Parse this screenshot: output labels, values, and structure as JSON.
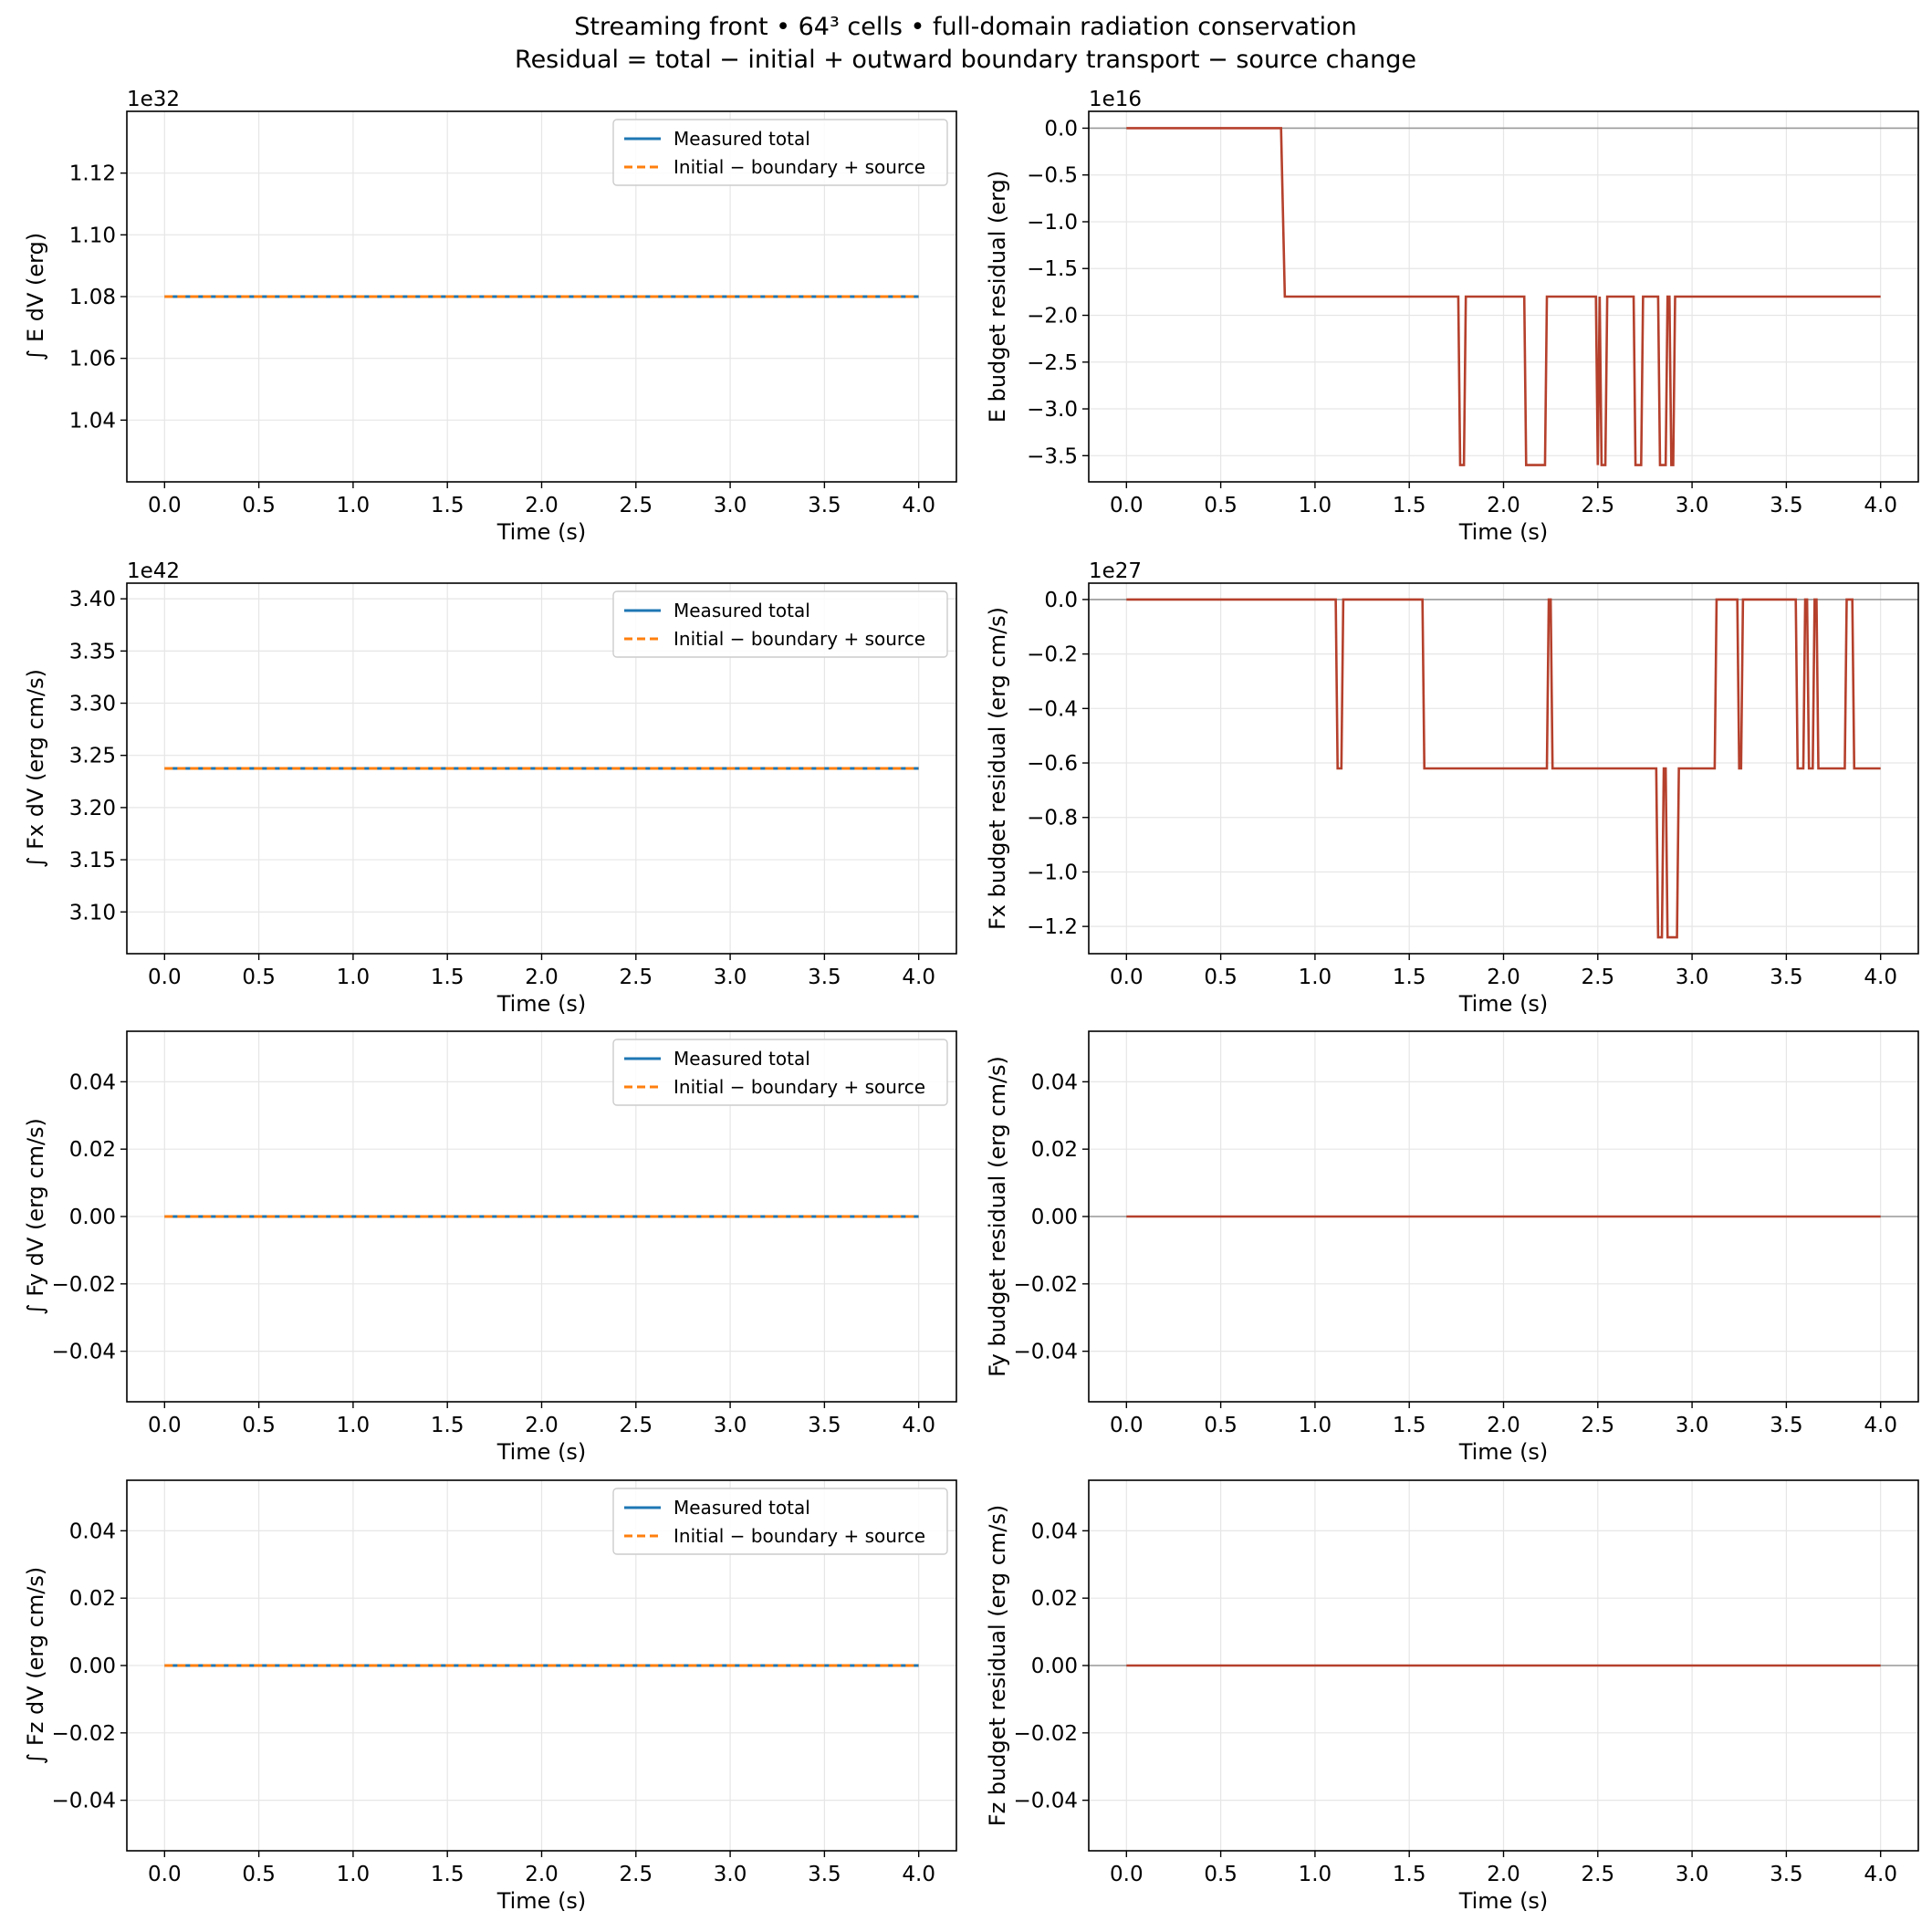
{
  "figure": {
    "title_line1": "Streaming front • 64³ cells • full-domain radiation conservation",
    "title_line2": "Residual = total − initial + outward boundary transport − source change"
  },
  "colors": {
    "measured": "#1f77b4",
    "predicted": "#ff7f0e",
    "residual": "#b5402c",
    "zero_line": "#999999",
    "grid": "#e6e6e6"
  },
  "legend": {
    "measured": "Measured total",
    "predicted": "Initial − boundary + source"
  },
  "chart_data": [
    {
      "type": "line",
      "xlabel": "Time (s)",
      "ylabel": "∫ E dV (erg)",
      "offset_text": "1e32",
      "xlim": [
        -0.2,
        4.2
      ],
      "ylim": [
        1.02,
        1.14
      ],
      "xticks": [
        "0.0",
        "0.5",
        "1.0",
        "1.5",
        "2.0",
        "2.5",
        "3.0",
        "3.5",
        "4.0"
      ],
      "yticks": [
        "1.04",
        "1.06",
        "1.08",
        "1.10",
        "1.12"
      ],
      "legend": "upper right",
      "grid": true,
      "series": [
        {
          "name": "Measured total",
          "style": "solid",
          "x": [
            0,
            4
          ],
          "y": [
            1.08,
            1.08
          ]
        },
        {
          "name": "Initial − boundary + source",
          "style": "dashed",
          "x": [
            0,
            4
          ],
          "y": [
            1.08,
            1.08
          ]
        }
      ]
    },
    {
      "type": "line",
      "xlabel": "Time (s)",
      "ylabel": "E budget residual (erg)",
      "offset_text": "1e16",
      "xlim": [
        -0.2,
        4.2
      ],
      "ylim": [
        -3.78,
        0.18
      ],
      "xticks": [
        "0.0",
        "0.5",
        "1.0",
        "1.5",
        "2.0",
        "2.5",
        "3.0",
        "3.5",
        "4.0"
      ],
      "yticks": [
        "0.0",
        "−0.5",
        "−1.0",
        "−1.5",
        "−2.0",
        "−2.5",
        "−3.0",
        "−3.5"
      ],
      "zero_line": true,
      "grid": true,
      "series": [
        {
          "style": "solid",
          "x": [
            0,
            0.82,
            0.84,
            1.76,
            1.77,
            1.79,
            1.8,
            2.11,
            2.12,
            2.22,
            2.23,
            2.49,
            2.5,
            2.51,
            2.52,
            2.54,
            2.55,
            2.69,
            2.7,
            2.73,
            2.74,
            2.82,
            2.83,
            2.86,
            2.87,
            2.88,
            2.89,
            2.9,
            2.91,
            4.0
          ],
          "y": [
            0,
            0,
            -1.8,
            -1.8,
            -3.6,
            -3.6,
            -1.8,
            -1.8,
            -3.6,
            -3.6,
            -1.8,
            -1.8,
            -3.6,
            -1.8,
            -3.6,
            -3.6,
            -1.8,
            -1.8,
            -3.6,
            -3.6,
            -1.8,
            -1.8,
            -3.6,
            -3.6,
            -1.8,
            -1.8,
            -3.6,
            -3.6,
            -1.8,
            -1.8
          ]
        }
      ]
    },
    {
      "type": "line",
      "xlabel": "Time (s)",
      "ylabel": "∫ Fx dV (erg cm/s)",
      "offset_text": "1e42",
      "xlim": [
        -0.2,
        4.2
      ],
      "ylim": [
        3.06,
        3.415
      ],
      "xticks": [
        "0.0",
        "0.5",
        "1.0",
        "1.5",
        "2.0",
        "2.5",
        "3.0",
        "3.5",
        "4.0"
      ],
      "yticks": [
        "3.10",
        "3.15",
        "3.20",
        "3.25",
        "3.30",
        "3.35",
        "3.40"
      ],
      "legend": "upper right",
      "grid": true,
      "series": [
        {
          "name": "Measured total",
          "style": "solid",
          "x": [
            0,
            4
          ],
          "y": [
            3.2375,
            3.2375
          ]
        },
        {
          "name": "Initial − boundary + source",
          "style": "dashed",
          "x": [
            0,
            4
          ],
          "y": [
            3.2375,
            3.2375
          ]
        }
      ]
    },
    {
      "type": "line",
      "xlabel": "Time (s)",
      "ylabel": "Fx budget residual (erg cm/s)",
      "offset_text": "1e27",
      "xlim": [
        -0.2,
        4.2
      ],
      "ylim": [
        -1.3,
        0.06
      ],
      "xticks": [
        "0.0",
        "0.5",
        "1.0",
        "1.5",
        "2.0",
        "2.5",
        "3.0",
        "3.5",
        "4.0"
      ],
      "yticks": [
        "0.0",
        "−0.2",
        "−0.4",
        "−0.6",
        "−0.8",
        "−1.0",
        "−1.2"
      ],
      "zero_line": true,
      "grid": true,
      "series": [
        {
          "style": "solid",
          "x": [
            0,
            1.11,
            1.12,
            1.14,
            1.15,
            1.57,
            1.58,
            2.23,
            2.24,
            2.25,
            2.26,
            2.81,
            2.82,
            2.84,
            2.85,
            2.86,
            2.87,
            2.92,
            2.93,
            3.12,
            3.13,
            3.24,
            3.25,
            3.26,
            3.27,
            3.55,
            3.56,
            3.59,
            3.6,
            3.61,
            3.62,
            3.64,
            3.65,
            3.66,
            3.67,
            3.81,
            3.82,
            3.85,
            3.86,
            4.0
          ],
          "y": [
            0,
            0,
            -0.62,
            -0.62,
            0,
            0,
            -0.62,
            -0.62,
            0,
            0,
            -0.62,
            -0.62,
            -1.24,
            -1.24,
            -0.62,
            -0.62,
            -1.24,
            -1.24,
            -0.62,
            -0.62,
            0,
            0,
            -0.62,
            -0.62,
            0,
            0,
            -0.62,
            -0.62,
            0,
            0,
            -0.62,
            -0.62,
            0,
            0,
            -0.62,
            -0.62,
            0,
            0,
            -0.62,
            -0.62
          ]
        }
      ]
    },
    {
      "type": "line",
      "xlabel": "Time (s)",
      "ylabel": "∫ Fy dV (erg cm/s)",
      "offset_text": "",
      "xlim": [
        -0.2,
        4.2
      ],
      "ylim": [
        -0.055,
        0.055
      ],
      "xticks": [
        "0.0",
        "0.5",
        "1.0",
        "1.5",
        "2.0",
        "2.5",
        "3.0",
        "3.5",
        "4.0"
      ],
      "yticks": [
        "0.04",
        "0.02",
        "0.00",
        "−0.02",
        "−0.04"
      ],
      "legend": "upper right",
      "grid": true,
      "series": [
        {
          "name": "Measured total",
          "style": "solid",
          "x": [
            0,
            4
          ],
          "y": [
            0,
            0
          ]
        },
        {
          "name": "Initial − boundary + source",
          "style": "dashed",
          "x": [
            0,
            4
          ],
          "y": [
            0,
            0
          ]
        }
      ]
    },
    {
      "type": "line",
      "xlabel": "Time (s)",
      "ylabel": "Fy budget residual (erg cm/s)",
      "offset_text": "",
      "xlim": [
        -0.2,
        4.2
      ],
      "ylim": [
        -0.055,
        0.055
      ],
      "xticks": [
        "0.0",
        "0.5",
        "1.0",
        "1.5",
        "2.0",
        "2.5",
        "3.0",
        "3.5",
        "4.0"
      ],
      "yticks": [
        "0.04",
        "0.02",
        "0.00",
        "−0.02",
        "−0.04"
      ],
      "zero_line": true,
      "grid": true,
      "series": [
        {
          "style": "solid",
          "x": [
            0,
            4
          ],
          "y": [
            0,
            0
          ]
        }
      ]
    },
    {
      "type": "line",
      "xlabel": "Time (s)",
      "ylabel": "∫ Fz dV (erg cm/s)",
      "offset_text": "",
      "xlim": [
        -0.2,
        4.2
      ],
      "ylim": [
        -0.055,
        0.055
      ],
      "xticks": [
        "0.0",
        "0.5",
        "1.0",
        "1.5",
        "2.0",
        "2.5",
        "3.0",
        "3.5",
        "4.0"
      ],
      "yticks": [
        "0.04",
        "0.02",
        "0.00",
        "−0.02",
        "−0.04"
      ],
      "legend": "upper right",
      "grid": true,
      "series": [
        {
          "name": "Measured total",
          "style": "solid",
          "x": [
            0,
            4
          ],
          "y": [
            0,
            0
          ]
        },
        {
          "name": "Initial − boundary + source",
          "style": "dashed",
          "x": [
            0,
            4
          ],
          "y": [
            0,
            0
          ]
        }
      ]
    },
    {
      "type": "line",
      "xlabel": "Time (s)",
      "ylabel": "Fz budget residual (erg cm/s)",
      "offset_text": "",
      "xlim": [
        -0.2,
        4.2
      ],
      "ylim": [
        -0.055,
        0.055
      ],
      "xticks": [
        "0.0",
        "0.5",
        "1.0",
        "1.5",
        "2.0",
        "2.5",
        "3.0",
        "3.5",
        "4.0"
      ],
      "yticks": [
        "0.04",
        "0.02",
        "0.00",
        "−0.02",
        "−0.04"
      ],
      "zero_line": true,
      "grid": true,
      "series": [
        {
          "style": "solid",
          "x": [
            0,
            4
          ],
          "y": [
            0,
            0
          ]
        }
      ]
    }
  ]
}
